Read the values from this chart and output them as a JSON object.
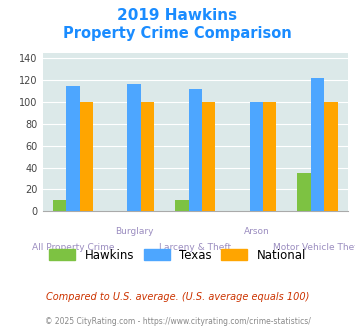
{
  "title_line1": "2019 Hawkins",
  "title_line2": "Property Crime Comparison",
  "groups": [
    "All Property Crime",
    "Burglary",
    "Larceny & Theft",
    "Arson",
    "Motor Vehicle Theft"
  ],
  "xlabel_top": [
    "",
    "Burglary",
    "",
    "Arson",
    ""
  ],
  "xlabel_bottom": [
    "All Property Crime",
    "",
    "Larceny & Theft",
    "",
    "Motor Vehicle Theft"
  ],
  "hawkins": [
    10,
    0,
    10,
    0,
    35
  ],
  "texas": [
    115,
    116,
    112,
    100,
    122
  ],
  "national": [
    100,
    100,
    100,
    100,
    100
  ],
  "hawkins_color": "#7dc242",
  "texas_color": "#4da6ff",
  "national_color": "#ffa500",
  "ylim": [
    0,
    145
  ],
  "yticks": [
    0,
    20,
    40,
    60,
    80,
    100,
    120,
    140
  ],
  "bg_color": "#dce9e9",
  "title_color": "#1a8cff",
  "xlabel_color": "#9b8dc0",
  "footnote1": "Compared to U.S. average. (U.S. average equals 100)",
  "footnote2": "© 2025 CityRating.com - https://www.cityrating.com/crime-statistics/",
  "footnote1_color": "#cc3300",
  "footnote2_color": "#888888",
  "legend_labels": [
    "Hawkins",
    "Texas",
    "National"
  ]
}
